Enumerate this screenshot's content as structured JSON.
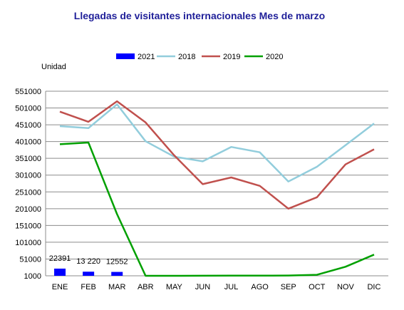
{
  "chart_data": {
    "type": "line",
    "title": "Llegadas de visitantes internacionales  Mes de marzo",
    "ylabel": "Unidad",
    "xlabel": "",
    "categories": [
      "ENE",
      "FEB",
      "MAR",
      "ABR",
      "MAY",
      "JUN",
      "JUL",
      "AGO",
      "SEP",
      "OCT",
      "NOV",
      "DIC"
    ],
    "yticks": [
      "1000",
      "51000",
      "101000",
      "151000",
      "201000",
      "251000",
      "301000",
      "351000",
      "401000",
      "451000",
      "501000",
      "551000"
    ],
    "ylim": [
      1000,
      551000
    ],
    "grid": true,
    "legend_position": "top-center",
    "bars": {
      "name": "2021",
      "color": "#0000ff",
      "values": [
        22391,
        13220,
        12552
      ],
      "labels": [
        "22391",
        "13 220",
        "12552"
      ]
    },
    "series": [
      {
        "name": "2018",
        "color": "#92cddc",
        "values": [
          447000,
          441000,
          512000,
          402000,
          356000,
          342000,
          385000,
          369000,
          282000,
          326000,
          390000,
          455000
        ]
      },
      {
        "name": "2019",
        "color": "#c0504d",
        "values": [
          490000,
          460000,
          521000,
          458000,
          360000,
          274000,
          294000,
          269000,
          201000,
          235000,
          333000,
          378000
        ]
      },
      {
        "name": "2020",
        "color": "#00a000",
        "values": [
          393000,
          398000,
          185000,
          1000,
          1000,
          1200,
          1500,
          1500,
          1800,
          4000,
          28000,
          64000
        ]
      }
    ]
  }
}
